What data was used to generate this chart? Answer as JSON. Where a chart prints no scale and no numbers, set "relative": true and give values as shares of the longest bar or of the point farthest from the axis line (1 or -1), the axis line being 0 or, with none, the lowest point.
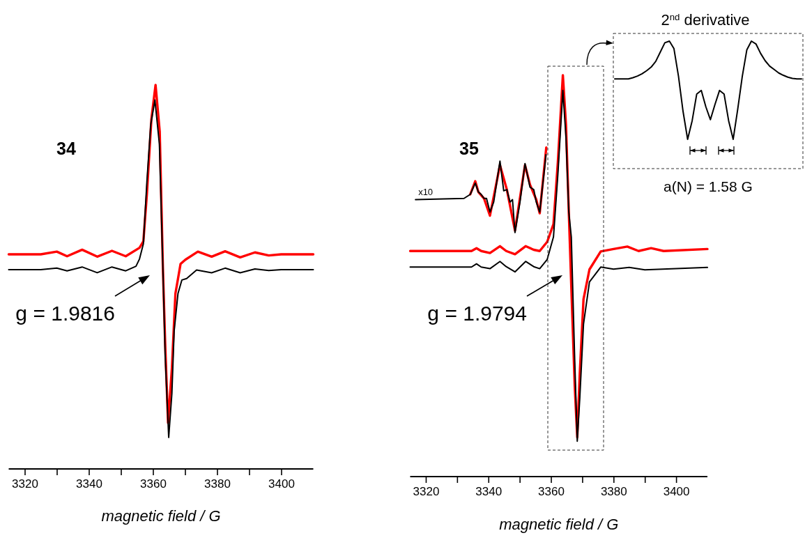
{
  "chart_data": [
    {
      "type": "line",
      "title": "34",
      "xlabel": "magnetic field / G",
      "xlim": [
        3315,
        3410
      ],
      "xticks": [
        3320,
        {
          "value": 3330,
          "label": null
        },
        3340,
        {
          "value": 3350,
          "label": null
        },
        3360,
        {
          "value": 3370,
          "label": null
        },
        3380,
        {
          "value": 3390,
          "label": null
        },
        3400
      ],
      "relative": true,
      "series": [
        {
          "color": "#ff0000",
          "x": [
            3315,
            3325,
            3330,
            3333.2,
            3337.9,
            3342.6,
            3347.2,
            3351.5,
            3355.8,
            3357,
            3358.1,
            3359.5,
            3360.8,
            3362.1,
            3363.1,
            3363.8,
            3364.7,
            3365.9,
            3367,
            3368.6,
            3370.1,
            3374,
            3378.3,
            3382.5,
            3387.2,
            3391.8,
            3396.1,
            3400,
            3410
          ],
          "values": [
            0.559,
            0.559,
            0.566,
            0.554,
            0.571,
            0.553,
            0.568,
            0.554,
            0.576,
            0.593,
            0.716,
            0.911,
            1,
            0.879,
            0.521,
            0.327,
            0.12,
            0.262,
            0.457,
            0.534,
            0.545,
            0.566,
            0.553,
            0.567,
            0.551,
            0.564,
            0.556,
            0.559,
            0.559
          ]
        },
        {
          "color": "#000000",
          "x": [
            3315,
            3325,
            3330,
            3333.2,
            3337.9,
            3342.6,
            3347.2,
            3351.5,
            3354.7,
            3355.8,
            3357,
            3358.1,
            3359.3,
            3360.6,
            3362,
            3363.1,
            3363.8,
            3364.9,
            3365.9,
            3366.6,
            3367.8,
            3369,
            3370.5,
            3373.6,
            3378.3,
            3382.5,
            3387.2,
            3391.8,
            3396.1,
            3400,
            3410
          ],
          "values": [
            0.519,
            0.519,
            0.523,
            0.516,
            0.526,
            0.511,
            0.526,
            0.516,
            0.528,
            0.547,
            0.586,
            0.748,
            0.897,
            0.961,
            0.846,
            0.521,
            0.295,
            0.082,
            0.197,
            0.359,
            0.457,
            0.492,
            0.496,
            0.518,
            0.511,
            0.523,
            0.511,
            0.521,
            0.517,
            0.519,
            0.519
          ]
        }
      ],
      "annotations": [
        "g = 1.9816"
      ]
    },
    {
      "type": "line",
      "title": "35",
      "xlabel": "magnetic field / G",
      "xlim": [
        3315,
        3410
      ],
      "xticks": [
        3320,
        {
          "value": 3330,
          "label": null
        },
        3340,
        {
          "value": 3350,
          "label": null
        },
        3360,
        {
          "value": 3370,
          "label": null
        },
        3380,
        {
          "value": 3390,
          "label": null
        },
        3400
      ],
      "relative": true,
      "series": [
        {
          "color": "#ff0000",
          "x": [
            3315,
            3334.6,
            3336.2,
            3337.7,
            3340.5,
            3343.7,
            3345.7,
            3348.5,
            3351.9,
            3354.5,
            3356.4,
            3358.8,
            3360.8,
            3362.2,
            3363.8,
            3364.8,
            3365.7,
            3366.5,
            3367.6,
            3368.4,
            3369.2,
            3370.4,
            3372.3,
            3375.9,
            3380,
            3384.4,
            3388,
            3392,
            3396,
            3410
          ],
          "values": [
            0.562,
            0.562,
            0.569,
            0.562,
            0.557,
            0.574,
            0.562,
            0.554,
            0.574,
            0.565,
            0.562,
            0.585,
            0.629,
            0.783,
            1,
            0.876,
            0.659,
            0.473,
            0.225,
            0.098,
            0.256,
            0.442,
            0.516,
            0.561,
            0.567,
            0.573,
            0.562,
            0.569,
            0.562,
            0.567
          ]
        },
        {
          "color": "#000000",
          "x": [
            3315,
            3334.6,
            3336.2,
            3337.7,
            3340.5,
            3343.7,
            3345.7,
            3348.5,
            3351.9,
            3354.5,
            3356.4,
            3358.8,
            3360.8,
            3362.2,
            3363.8,
            3364.8,
            3365.7,
            3366.5,
            3367.6,
            3368.4,
            3369.2,
            3370.4,
            3372.3,
            3375.9,
            3380,
            3385,
            3390,
            3410
          ],
          "values": [
            0.522,
            0.522,
            0.53,
            0.522,
            0.518,
            0.536,
            0.523,
            0.51,
            0.536,
            0.523,
            0.518,
            0.541,
            0.597,
            0.752,
            0.962,
            0.845,
            0.659,
            0.597,
            0.287,
            0.088,
            0.194,
            0.38,
            0.485,
            0.522,
            0.517,
            0.521,
            0.515,
            0.521
          ]
        },
        {
          "color": "#ff0000",
          "x": [
            3334.2,
            3335.8,
            3336.8,
            3338.6,
            3340.5,
            3343.7,
            3345.9,
            3348.5,
            3351.7,
            3353.3,
            3355.3,
            3356.4,
            3358.5
          ],
          "values": [
            0.703,
            0.736,
            0.709,
            0.693,
            0.65,
            0.776,
            0.715,
            0.613,
            0.776,
            0.727,
            0.69,
            0.656,
            0.82
          ]
        },
        {
          "color": "#000000",
          "x": [
            3316.7,
            3332.2,
            3334.2,
            3335.8,
            3336.8,
            3337.7,
            3338.6,
            3339.4,
            3340.5,
            3341.7,
            3343.7,
            3344.9,
            3345.9,
            3346.9,
            3347.7,
            3348.5,
            3350.1,
            3351.7,
            3353.3,
            3354.5,
            3355.3,
            3356.4,
            3358,
            3358.4
          ],
          "values": [
            0.69,
            0.693,
            0.703,
            0.731,
            0.709,
            0.703,
            0.693,
            0.693,
            0.659,
            0.684,
            0.786,
            0.712,
            0.715,
            0.684,
            0.69,
            0.608,
            0.684,
            0.78,
            0.721,
            0.715,
            0.684,
            0.659,
            0.771,
            0.802
          ]
        }
      ],
      "annotations": [
        "g = 1.9794",
        {
          "text": "x10",
          "x": 3316.7,
          "y": 0.69
        }
      ]
    },
    {
      "type": "line",
      "title": "2$^{nd}$ derivative",
      "categories": [
        null,
        null,
        null,
        null,
        null,
        null,
        null,
        null,
        null,
        null,
        null,
        null,
        null,
        null,
        null,
        null,
        null,
        null,
        null,
        null,
        null,
        null,
        null,
        null,
        null,
        null,
        null,
        null,
        null,
        null,
        null,
        null,
        null,
        null,
        null,
        null,
        null,
        null,
        null,
        null,
        null,
        null
      ],
      "relative": true,
      "tick_labels": false,
      "series": [
        {
          "color": "#000000",
          "values": [
            0.704,
            0.704,
            0.704,
            0.704,
            0.713,
            0.726,
            0.744,
            0.768,
            0.796,
            0.841,
            0.914,
            0.987,
            1,
            0.941,
            0.723,
            0.448,
            0.23,
            0.376,
            0.585,
            0.613,
            0.485,
            0.384,
            0.503,
            0.613,
            0.585,
            0.376,
            0.23,
            0.467,
            0.723,
            0.932,
            1,
            0.978,
            0.905,
            0.847,
            0.804,
            0.777,
            0.75,
            0.732,
            0.717,
            0.708,
            0.704,
            0.704
          ]
        }
      ],
      "annotations": [
        "a(N) = 1.58 G"
      ]
    }
  ]
}
